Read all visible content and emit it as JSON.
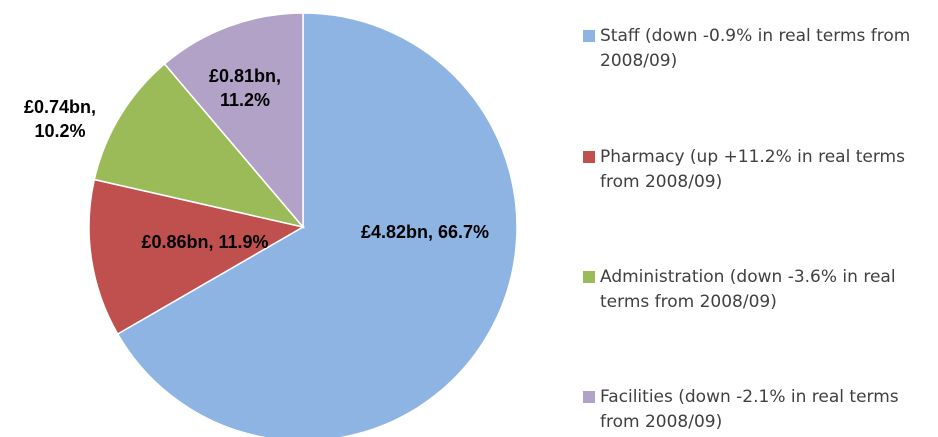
{
  "chart_data": {
    "type": "pie",
    "categories": [
      "Staff (down -0.9% in real terms from 2008/09)",
      "Pharmacy (up +11.2% in real terms from 2008/09)",
      "Administration (down -3.6% in real terms from 2008/09)",
      "Facilities (down -2.1% in real terms from 2008/09)"
    ],
    "values": [
      4.82,
      0.86,
      0.74,
      0.81
    ],
    "value_labels": [
      "£4.82bn, 66.7%",
      "£0.86bn, 11.9%",
      "£0.74bn, 10.2%",
      "£0.81bn, 11.2%"
    ],
    "colors": [
      "#8eb4e3",
      "#c0504d",
      "#9bbb59",
      "#b3a2c7"
    ],
    "legend": "right"
  }
}
